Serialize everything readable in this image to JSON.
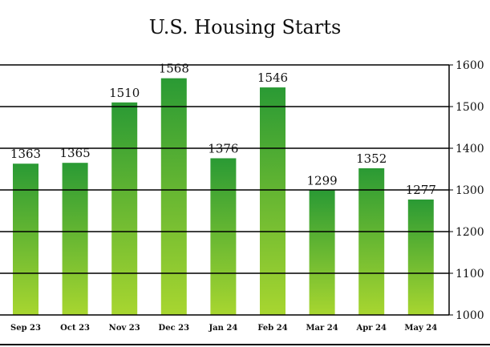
{
  "chart_data": {
    "type": "bar",
    "title": "U.S. Housing Starts",
    "categories": [
      "Sep 23",
      "Oct 23",
      "Nov 23",
      "Dec 23",
      "Jan 24",
      "Feb 24",
      "Mar 24",
      "Apr 24",
      "May 24"
    ],
    "values": [
      1363,
      1365,
      1510,
      1568,
      1376,
      1546,
      1299,
      1352,
      1277
    ],
    "data_labels": [
      "1363",
      "1365",
      "1510",
      "1568",
      "1376",
      "1546",
      "1299",
      "1352",
      "1277"
    ],
    "ylim": [
      1000,
      1600
    ],
    "y_ticks": [
      1000,
      1100,
      1200,
      1300,
      1400,
      1500,
      1600
    ],
    "y_axis_position": "right",
    "grid": true,
    "colors": {
      "bar_top": "#2a9a34",
      "bar_bottom": "#a8d630",
      "axis": "#000000"
    }
  }
}
